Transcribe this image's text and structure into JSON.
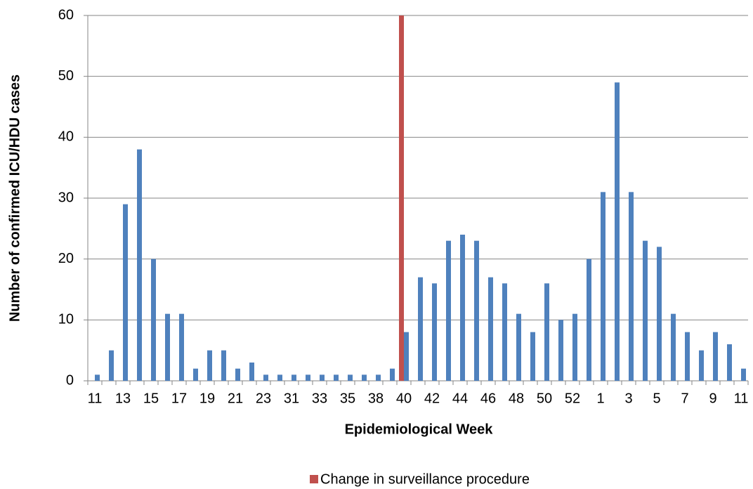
{
  "chart_data": {
    "type": "bar",
    "x_label": "Epidemiological Week",
    "y_label": "Number of confirmed ICU/HDU cases",
    "categories": [
      "11",
      null,
      "13",
      null,
      "15",
      null,
      "17",
      null,
      "19",
      null,
      "21",
      null,
      "23",
      null,
      "31",
      null,
      "33",
      null,
      "35",
      null,
      "38",
      null,
      "40",
      null,
      "42",
      null,
      "44",
      null,
      "46",
      null,
      "48",
      null,
      "50",
      null,
      "52",
      null,
      "1",
      null,
      "3",
      null,
      "5",
      null,
      "7",
      null,
      "9",
      null,
      "11"
    ],
    "series": [
      {
        "color": "#4f81bd",
        "values": [
          1,
          5,
          29,
          38,
          20,
          11,
          11,
          2,
          5,
          5,
          2,
          3,
          1,
          1,
          1,
          1,
          1,
          1,
          1,
          1,
          1,
          2,
          8,
          17,
          16,
          23,
          24,
          23,
          17,
          16,
          11,
          8,
          16,
          10,
          11,
          20,
          31,
          49,
          31,
          23,
          22,
          11,
          8,
          5,
          8,
          6,
          2
        ]
      },
      {
        "name": "Change in surveillance procedure",
        "color": "#c0504d",
        "values": [
          null,
          null,
          null,
          null,
          null,
          null,
          null,
          null,
          null,
          null,
          null,
          null,
          null,
          null,
          null,
          null,
          null,
          null,
          null,
          null,
          null,
          null,
          60,
          null,
          null,
          null,
          null,
          null,
          null,
          null,
          null,
          null,
          null,
          null,
          null,
          null,
          null,
          null,
          null,
          null,
          null,
          null,
          null,
          null,
          null,
          null,
          null
        ]
      }
    ],
    "ylim": [
      0,
      60
    ],
    "yticks": [
      0,
      10,
      20,
      30,
      40,
      50,
      60
    ],
    "grid": true,
    "legend": "bottom"
  }
}
